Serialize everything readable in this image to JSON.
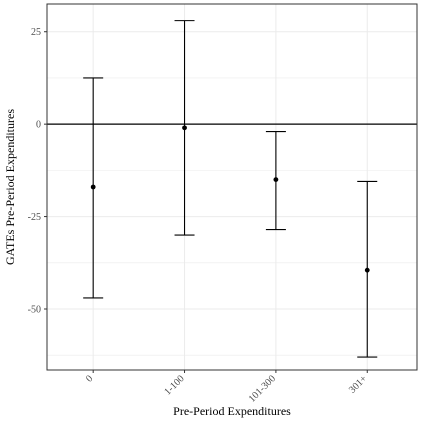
{
  "chart_data": {
    "type": "errorbar",
    "xlabel": "Pre-Period Expenditures",
    "ylabel": "GATEs Pre-Period Expenditures",
    "categories": [
      "0",
      "1-100",
      "101-300",
      "301+"
    ],
    "points": [
      {
        "category": "0",
        "estimate": -17,
        "lower": -47,
        "upper": 12.5
      },
      {
        "category": "1-100",
        "estimate": -1,
        "lower": -30,
        "upper": 28
      },
      {
        "category": "101-300",
        "estimate": -15,
        "lower": -28.5,
        "upper": -2
      },
      {
        "category": "301+",
        "estimate": -39.5,
        "lower": -63,
        "upper": -15.5
      }
    ],
    "ylim": [
      -66.5,
      32.5
    ],
    "yticks": [
      25,
      0,
      -25,
      -50
    ],
    "ytick_labels": [
      "25",
      "0",
      "-25",
      "-50"
    ],
    "reference_line": 0,
    "grid": true,
    "theme": "bw",
    "colors": {
      "points": "#000000",
      "grid": "#ebebeb",
      "border": "#333333",
      "hline": "#000000"
    }
  }
}
